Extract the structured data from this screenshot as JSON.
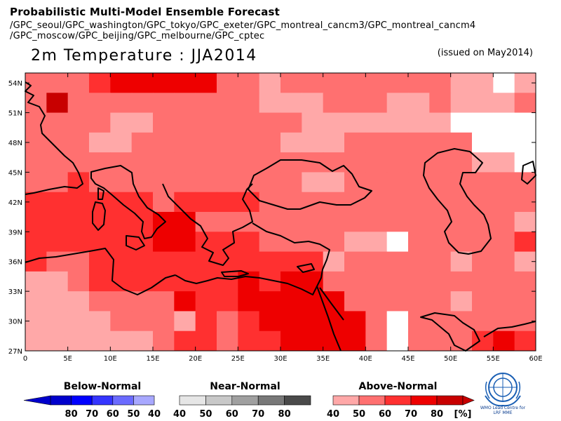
{
  "header": {
    "title": "Probabilistic Multi-Model Ensemble Forecast",
    "models_line1": "/GPC_seoul/GPC_washington/GPC_tokyo/GPC_exeter/GPC_montreal_cancm3/GPC_montreal_cancm4",
    "models_line2": "/GPC_moscow/GPC_beijing/GPC_melbourne/GPC_cptec",
    "main_title": "2m Temperature : JJA2014",
    "issued": "(issued on May2014)"
  },
  "map": {
    "lon_range": [
      0,
      60
    ],
    "lat_range": [
      27,
      55
    ],
    "x_ticks": [
      "0",
      "5E",
      "10E",
      "15E",
      "20E",
      "25E",
      "30E",
      "35E",
      "40E",
      "45E",
      "50E",
      "55E",
      "60E"
    ],
    "y_ticks": [
      "54N",
      "51N",
      "48N",
      "45N",
      "42N",
      "39N",
      "36N",
      "33N",
      "30N",
      "27N"
    ],
    "colors": {
      "above_40": "#ffa8a8",
      "above_50": "#ff7070",
      "above_60": "#ff3030",
      "above_70": "#ee0000",
      "above_80": "#c80000",
      "white": "#ffffff",
      "coast": "#000000"
    }
  },
  "legend": {
    "below": {
      "label": "Below-Normal",
      "ticks": [
        "80",
        "70",
        "60",
        "50",
        "40"
      ],
      "colors": [
        "#0000cc",
        "#0000ff",
        "#3535ff",
        "#6b6bff",
        "#a8a8ff"
      ]
    },
    "near": {
      "label": "Near-Normal",
      "ticks": [
        "40",
        "50",
        "60",
        "70",
        "80"
      ],
      "colors": [
        "#e6e6e6",
        "#c8c8c8",
        "#a0a0a0",
        "#787878",
        "#4a4a4a"
      ]
    },
    "above": {
      "label": "Above-Normal",
      "ticks": [
        "40",
        "50",
        "60",
        "70",
        "80"
      ],
      "unit": "[%]",
      "colors": [
        "#ffa8a8",
        "#ff7070",
        "#ff3030",
        "#ee0000",
        "#c80000"
      ]
    }
  },
  "logo": {
    "text_line1": "WMO Lead Centre for",
    "text_line2": "LRF MME"
  }
}
